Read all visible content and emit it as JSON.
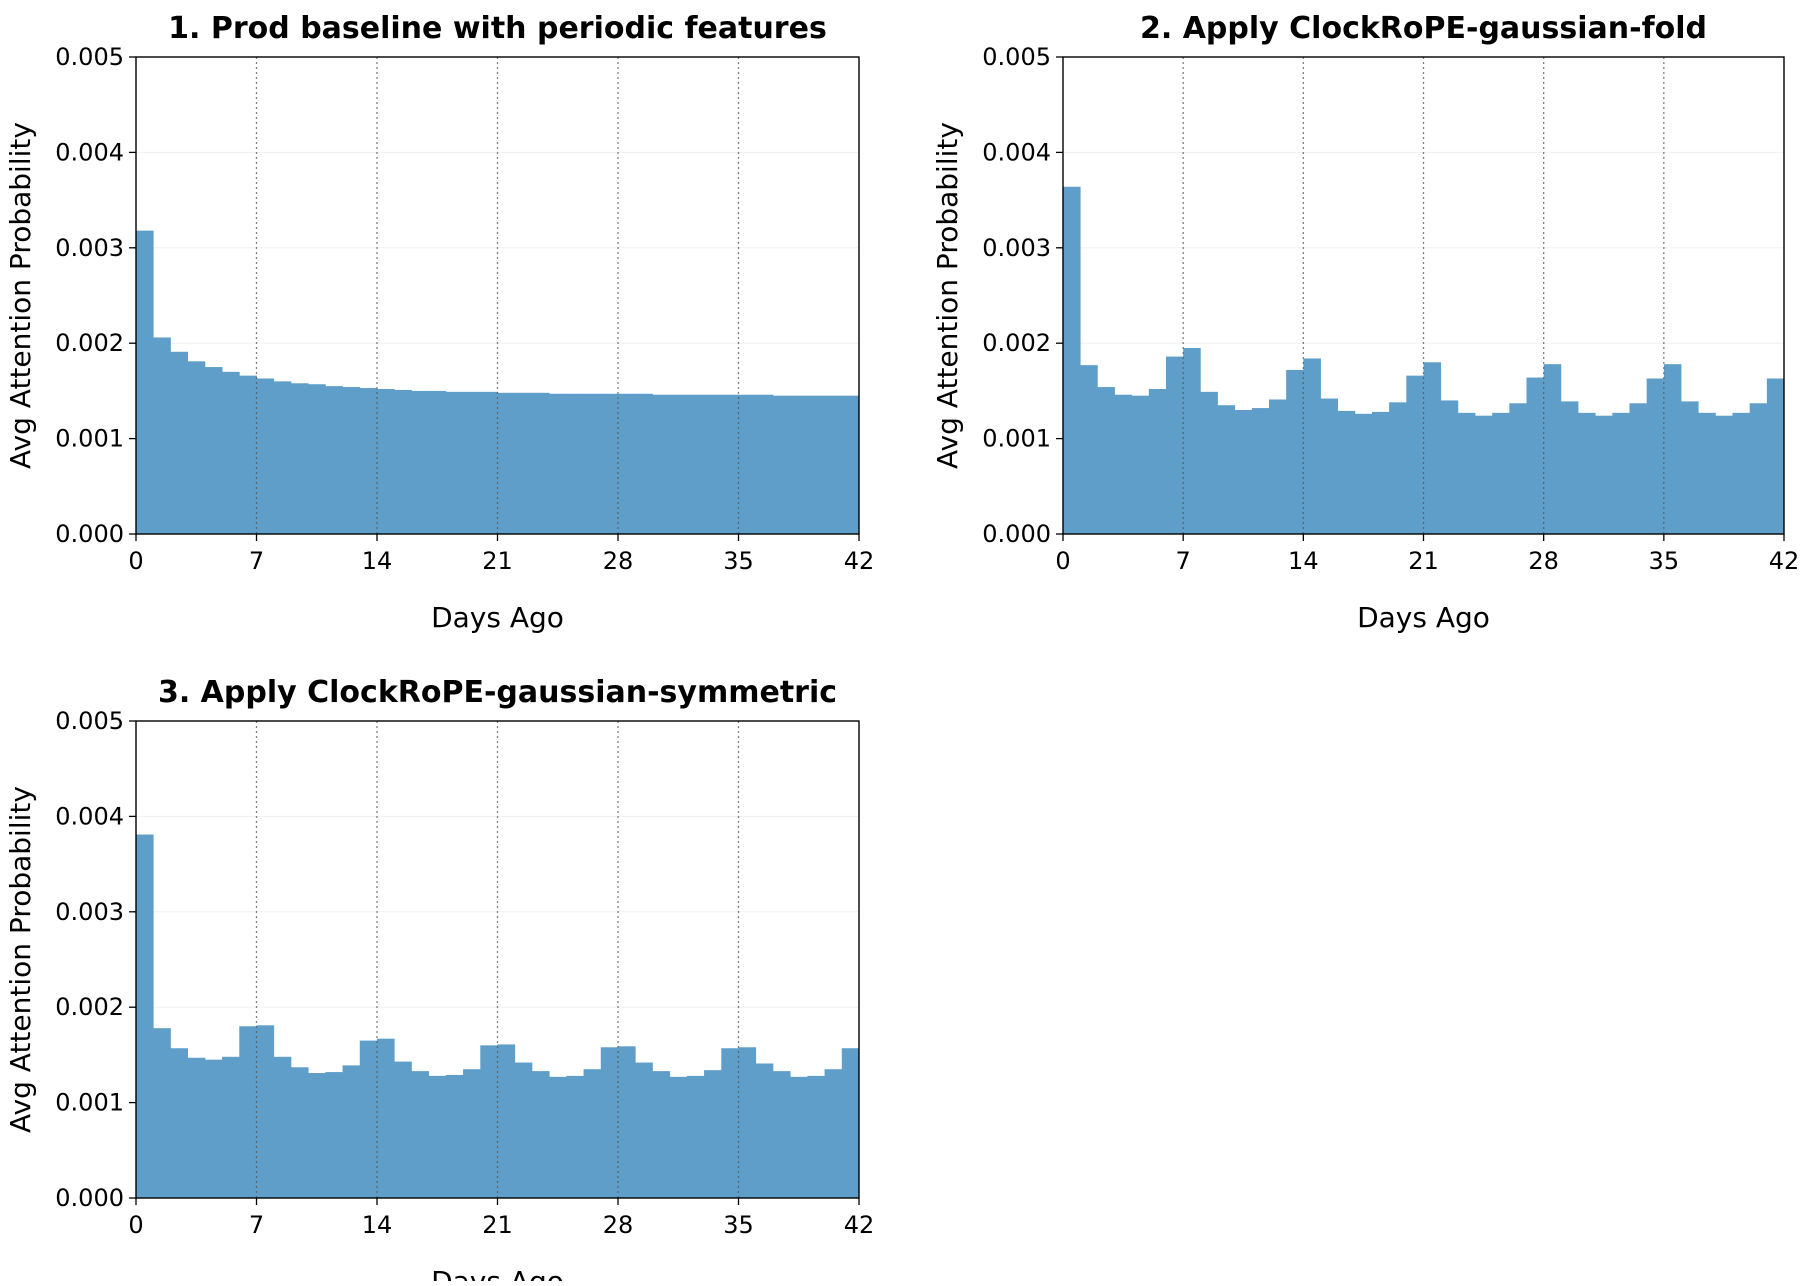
{
  "chart_data": [
    {
      "type": "bar",
      "title": "1. Prod baseline with periodic features",
      "xlabel": "Days Ago",
      "ylabel": "Avg Attention Probability",
      "xlim": [
        0,
        42
      ],
      "ylim": [
        0,
        0.005
      ],
      "xticks": [
        0,
        7,
        14,
        21,
        28,
        35,
        42
      ],
      "yticks": [
        "0.000",
        "0.001",
        "0.002",
        "0.003",
        "0.004",
        "0.005"
      ],
      "vertical_gridlines": [
        7,
        14,
        21,
        28,
        35
      ],
      "bar_color": "#5f9ec9",
      "values": [
        0.00318,
        0.00206,
        0.00191,
        0.00181,
        0.00175,
        0.0017,
        0.00166,
        0.00163,
        0.0016,
        0.00158,
        0.00157,
        0.00155,
        0.00154,
        0.00153,
        0.00152,
        0.00151,
        0.0015,
        0.0015,
        0.00149,
        0.00149,
        0.00149,
        0.00148,
        0.00148,
        0.00148,
        0.00147,
        0.00147,
        0.00147,
        0.00147,
        0.00147,
        0.00147,
        0.00146,
        0.00146,
        0.00146,
        0.00146,
        0.00146,
        0.00146,
        0.00146,
        0.00145,
        0.00145,
        0.00145,
        0.00145,
        0.00145
      ]
    },
    {
      "type": "bar",
      "title": "2. Apply ClockRoPE-gaussian-fold",
      "xlabel": "Days Ago",
      "ylabel": "Avg Attention Probability",
      "xlim": [
        0,
        42
      ],
      "ylim": [
        0,
        0.005
      ],
      "xticks": [
        0,
        7,
        14,
        21,
        28,
        35,
        42
      ],
      "yticks": [
        "0.000",
        "0.001",
        "0.002",
        "0.003",
        "0.004",
        "0.005"
      ],
      "vertical_gridlines": [
        7,
        14,
        21,
        28,
        35
      ],
      "bar_color": "#5f9ec9",
      "values": [
        0.00364,
        0.00177,
        0.00154,
        0.00146,
        0.00145,
        0.00152,
        0.00186,
        0.00195,
        0.00149,
        0.00135,
        0.0013,
        0.00132,
        0.00141,
        0.00172,
        0.00184,
        0.00142,
        0.00129,
        0.00126,
        0.00128,
        0.00138,
        0.00166,
        0.0018,
        0.0014,
        0.00127,
        0.00124,
        0.00127,
        0.00137,
        0.00164,
        0.00178,
        0.00139,
        0.00127,
        0.00124,
        0.00127,
        0.00137,
        0.00163,
        0.00178,
        0.00139,
        0.00127,
        0.00124,
        0.00127,
        0.00137,
        0.00163
      ]
    },
    {
      "type": "bar",
      "title": "3. Apply ClockRoPE-gaussian-symmetric",
      "xlabel": "Days Ago",
      "ylabel": "Avg Attention Probability",
      "xlim": [
        0,
        42
      ],
      "ylim": [
        0,
        0.005
      ],
      "xticks": [
        0,
        7,
        14,
        21,
        28,
        35,
        42
      ],
      "yticks": [
        "0.000",
        "0.001",
        "0.002",
        "0.003",
        "0.004",
        "0.005"
      ],
      "vertical_gridlines": [
        7,
        14,
        21,
        28,
        35
      ],
      "bar_color": "#5f9ec9",
      "values": [
        0.00381,
        0.00178,
        0.00157,
        0.00147,
        0.00145,
        0.00148,
        0.0018,
        0.00181,
        0.00148,
        0.00137,
        0.00131,
        0.00132,
        0.00139,
        0.00165,
        0.00167,
        0.00143,
        0.00133,
        0.00128,
        0.00129,
        0.00135,
        0.0016,
        0.00161,
        0.00142,
        0.00133,
        0.00127,
        0.00128,
        0.00135,
        0.00158,
        0.00159,
        0.00142,
        0.00133,
        0.00127,
        0.00128,
        0.00134,
        0.00157,
        0.00158,
        0.00141,
        0.00133,
        0.00127,
        0.00128,
        0.00135,
        0.00157
      ]
    }
  ]
}
